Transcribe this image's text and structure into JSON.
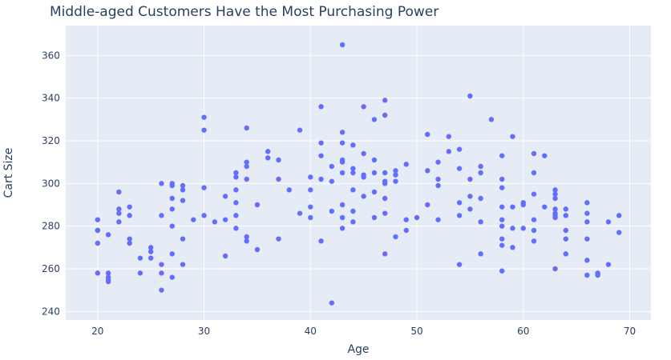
{
  "chart_data": {
    "type": "scatter",
    "title": "Middle-aged Customers Have the Most Purchasing Power",
    "xlabel": "Age",
    "ylabel": "Cart Size",
    "xlim": [
      17,
      72
    ],
    "ylim": [
      236,
      374
    ],
    "x_ticks": [
      20,
      30,
      40,
      50,
      60,
      70
    ],
    "y_ticks": [
      240,
      260,
      280,
      300,
      320,
      340,
      360
    ],
    "grid": true,
    "colors": {
      "marker": "#636efa",
      "plot_bg": "#e5ecf6",
      "grid": "#ffffff",
      "text": "#2a3f5f"
    },
    "points": [
      [
        20,
        283
      ],
      [
        20,
        278
      ],
      [
        20,
        272
      ],
      [
        20,
        258
      ],
      [
        20,
        278
      ],
      [
        21,
        258
      ],
      [
        21,
        256
      ],
      [
        21,
        255
      ],
      [
        21,
        254
      ],
      [
        21,
        276
      ],
      [
        22,
        296
      ],
      [
        22,
        288
      ],
      [
        22,
        286
      ],
      [
        22,
        282
      ],
      [
        23,
        289
      ],
      [
        23,
        285
      ],
      [
        23,
        274
      ],
      [
        23,
        272
      ],
      [
        24,
        265
      ],
      [
        24,
        258
      ],
      [
        25,
        270
      ],
      [
        25,
        268
      ],
      [
        25,
        265
      ],
      [
        26,
        300
      ],
      [
        26,
        285
      ],
      [
        26,
        262
      ],
      [
        26,
        258
      ],
      [
        26,
        250
      ],
      [
        27,
        300
      ],
      [
        27,
        299
      ],
      [
        27,
        293
      ],
      [
        27,
        288
      ],
      [
        27,
        280
      ],
      [
        27,
        267
      ],
      [
        27,
        256
      ],
      [
        28,
        299
      ],
      [
        28,
        297
      ],
      [
        28,
        292
      ],
      [
        28,
        274
      ],
      [
        28,
        262
      ],
      [
        29,
        283
      ],
      [
        30,
        331
      ],
      [
        30,
        325
      ],
      [
        30,
        298
      ],
      [
        30,
        285
      ],
      [
        31,
        282
      ],
      [
        32,
        294
      ],
      [
        32,
        283
      ],
      [
        32,
        266
      ],
      [
        33,
        305
      ],
      [
        33,
        303
      ],
      [
        33,
        297
      ],
      [
        33,
        291
      ],
      [
        33,
        285
      ],
      [
        33,
        279
      ],
      [
        34,
        326
      ],
      [
        34,
        310
      ],
      [
        34,
        308
      ],
      [
        34,
        302
      ],
      [
        34,
        275
      ],
      [
        34,
        273
      ],
      [
        35,
        290
      ],
      [
        35,
        269
      ],
      [
        36,
        315
      ],
      [
        36,
        312
      ],
      [
        37,
        311
      ],
      [
        37,
        302
      ],
      [
        37,
        274
      ],
      [
        38,
        297
      ],
      [
        39,
        325
      ],
      [
        39,
        286
      ],
      [
        40,
        303
      ],
      [
        40,
        297
      ],
      [
        40,
        289
      ],
      [
        40,
        284
      ],
      [
        41,
        336
      ],
      [
        41,
        319
      ],
      [
        41,
        313
      ],
      [
        41,
        302
      ],
      [
        41,
        273
      ],
      [
        42,
        308
      ],
      [
        42,
        301
      ],
      [
        42,
        287
      ],
      [
        42,
        244
      ],
      [
        43,
        365
      ],
      [
        43,
        324
      ],
      [
        43,
        319
      ],
      [
        43,
        311
      ],
      [
        43,
        310
      ],
      [
        43,
        305
      ],
      [
        43,
        290
      ],
      [
        43,
        284
      ],
      [
        43,
        279
      ],
      [
        44,
        318
      ],
      [
        44,
        307
      ],
      [
        44,
        305
      ],
      [
        44,
        297
      ],
      [
        44,
        287
      ],
      [
        44,
        282
      ],
      [
        45,
        336
      ],
      [
        45,
        314
      ],
      [
        45,
        304
      ],
      [
        45,
        303
      ],
      [
        45,
        294
      ],
      [
        46,
        330
      ],
      [
        46,
        311
      ],
      [
        46,
        305
      ],
      [
        46,
        296
      ],
      [
        46,
        284
      ],
      [
        47,
        339
      ],
      [
        47,
        332
      ],
      [
        47,
        305
      ],
      [
        47,
        301
      ],
      [
        47,
        300
      ],
      [
        47,
        293
      ],
      [
        47,
        286
      ],
      [
        47,
        267
      ],
      [
        48,
        306
      ],
      [
        48,
        304
      ],
      [
        48,
        301
      ],
      [
        48,
        275
      ],
      [
        49,
        309
      ],
      [
        49,
        283
      ],
      [
        49,
        278
      ],
      [
        50,
        284
      ],
      [
        51,
        323
      ],
      [
        51,
        306
      ],
      [
        51,
        290
      ],
      [
        52,
        310
      ],
      [
        52,
        302
      ],
      [
        52,
        299
      ],
      [
        52,
        283
      ],
      [
        53,
        322
      ],
      [
        53,
        315
      ],
      [
        54,
        316
      ],
      [
        54,
        307
      ],
      [
        54,
        291
      ],
      [
        54,
        285
      ],
      [
        54,
        262
      ],
      [
        55,
        341
      ],
      [
        55,
        302
      ],
      [
        55,
        294
      ],
      [
        55,
        288
      ],
      [
        56,
        308
      ],
      [
        56,
        305
      ],
      [
        56,
        293
      ],
      [
        56,
        282
      ],
      [
        56,
        267
      ],
      [
        57,
        330
      ],
      [
        58,
        313
      ],
      [
        58,
        302
      ],
      [
        58,
        298
      ],
      [
        58,
        289
      ],
      [
        58,
        283
      ],
      [
        58,
        280
      ],
      [
        58,
        274
      ],
      [
        58,
        271
      ],
      [
        58,
        259
      ],
      [
        59,
        322
      ],
      [
        59,
        289
      ],
      [
        59,
        279
      ],
      [
        59,
        270
      ],
      [
        60,
        291
      ],
      [
        60,
        290
      ],
      [
        60,
        279
      ],
      [
        61,
        314
      ],
      [
        61,
        305
      ],
      [
        61,
        295
      ],
      [
        61,
        283
      ],
      [
        61,
        278
      ],
      [
        61,
        273
      ],
      [
        62,
        313
      ],
      [
        62,
        289
      ],
      [
        63,
        297
      ],
      [
        63,
        295
      ],
      [
        63,
        293
      ],
      [
        63,
        288
      ],
      [
        63,
        286
      ],
      [
        63,
        285
      ],
      [
        63,
        284
      ],
      [
        63,
        260
      ],
      [
        64,
        288
      ],
      [
        64,
        285
      ],
      [
        64,
        278
      ],
      [
        64,
        274
      ],
      [
        64,
        267
      ],
      [
        66,
        291
      ],
      [
        66,
        286
      ],
      [
        66,
        282
      ],
      [
        66,
        274
      ],
      [
        66,
        264
      ],
      [
        66,
        257
      ],
      [
        67,
        258
      ],
      [
        67,
        257
      ],
      [
        68,
        282
      ],
      [
        68,
        262
      ],
      [
        69,
        285
      ],
      [
        69,
        277
      ]
    ]
  }
}
